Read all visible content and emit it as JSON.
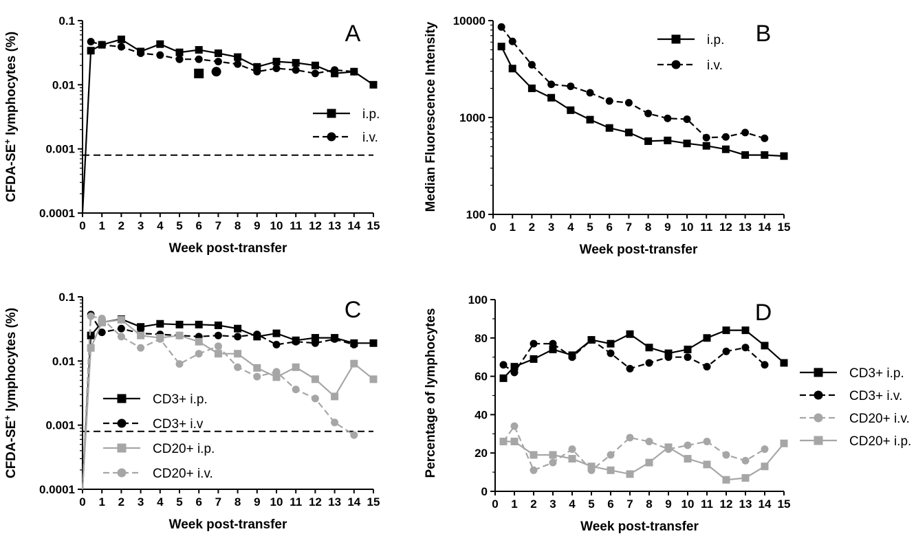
{
  "colors": {
    "black": "#000000",
    "gray": "#a6a6a6"
  },
  "chart_data": [
    {
      "panel": "A",
      "type": "line",
      "xlabel": "Week post-transfer",
      "ylabel_parts": [
        "CFDA-SE",
        "+",
        " lymphocytes (%)"
      ],
      "yscale": "log",
      "xlim": [
        0,
        15
      ],
      "ylim": [
        0.0001,
        0.1
      ],
      "xticks": [
        "0",
        "1",
        "2",
        "3",
        "4",
        "5",
        "6",
        "7",
        "8",
        "9",
        "10",
        "11",
        "12",
        "13",
        "14",
        "15"
      ],
      "yticks": [
        "0.0001",
        "0.001",
        "0.01",
        "0.1"
      ],
      "threshold": 0.0008,
      "legend_position": "right-middle",
      "series": [
        {
          "name": "i.p.",
          "marker": "square",
          "dashed": false,
          "color": "black",
          "x": [
            0,
            0.43,
            1,
            2,
            3,
            4,
            5,
            6,
            7,
            8,
            9,
            10,
            11,
            12,
            13,
            14,
            15
          ],
          "y": [
            0.0001,
            0.034,
            0.042,
            0.051,
            0.033,
            0.043,
            0.032,
            0.035,
            0.031,
            0.027,
            0.019,
            0.023,
            0.022,
            0.02,
            0.015,
            0.016,
            0.01
          ]
        },
        {
          "name": "i.v.",
          "marker": "circle",
          "dashed": true,
          "color": "black",
          "x": [
            0.43,
            1,
            2,
            3,
            4,
            5,
            6,
            7,
            8,
            9,
            10,
            11,
            12,
            13,
            14
          ],
          "y": [
            0.047,
            0.042,
            0.039,
            0.031,
            0.029,
            0.025,
            0.025,
            0.023,
            0.021,
            0.016,
            0.018,
            0.017,
            0.015,
            0.017,
            0.016
          ]
        }
      ],
      "extra_points": [
        {
          "x": 6,
          "y": 0.015,
          "marker": "square"
        },
        {
          "x": 6.9,
          "y": 0.016,
          "marker": "circle"
        }
      ]
    },
    {
      "panel": "B",
      "type": "line",
      "xlabel": "Week post-transfer",
      "ylabel": "Median Fluorescence Intensity",
      "yscale": "log",
      "xlim": [
        0,
        15
      ],
      "ylim": [
        100,
        10000
      ],
      "xticks": [
        "0",
        "1",
        "2",
        "3",
        "4",
        "5",
        "6",
        "7",
        "8",
        "9",
        "10",
        "11",
        "12",
        "13",
        "14",
        "15"
      ],
      "yticks": [
        "100",
        "1000",
        "10000"
      ],
      "legend_position": "top-middle",
      "series": [
        {
          "name": "i.p.",
          "marker": "square",
          "dashed": false,
          "color": "black",
          "x": [
            0.43,
            1,
            2,
            3,
            4,
            5,
            6,
            7,
            8,
            9,
            10,
            11,
            12,
            13,
            14,
            15
          ],
          "y": [
            5400,
            3200,
            2000,
            1600,
            1190,
            950,
            780,
            700,
            570,
            580,
            540,
            510,
            470,
            410,
            410,
            400
          ]
        },
        {
          "name": "i.v.",
          "marker": "circle",
          "dashed": true,
          "color": "black",
          "x": [
            0.43,
            1,
            2,
            3,
            4,
            5,
            6,
            7,
            8,
            9,
            10,
            11,
            12,
            13,
            14
          ],
          "y": [
            8600,
            6100,
            3500,
            2200,
            2100,
            1800,
            1480,
            1420,
            1100,
            980,
            960,
            620,
            630,
            700,
            610
          ]
        }
      ]
    },
    {
      "panel": "C",
      "type": "line",
      "xlabel": "Week post-transfer",
      "ylabel_parts": [
        "CFDA-SE",
        "+",
        " lymphocytes (%)"
      ],
      "yscale": "log",
      "xlim": [
        0,
        15
      ],
      "ylim": [
        0.0001,
        0.1
      ],
      "xticks": [
        "0",
        "1",
        "2",
        "3",
        "4",
        "5",
        "6",
        "7",
        "8",
        "9",
        "10",
        "11",
        "12",
        "13",
        "14",
        "15"
      ],
      "yticks": [
        "0.0001",
        "0.001",
        "0.01",
        "0.1"
      ],
      "threshold": 0.0008,
      "legend_position": "bottom-left",
      "series": [
        {
          "name": "CD3+ i.p.",
          "marker": "square",
          "dashed": false,
          "color": "black",
          "x": [
            0,
            0.43,
            1,
            2,
            3,
            4,
            5,
            6,
            7,
            8,
            9,
            10,
            11,
            12,
            13,
            14,
            15
          ],
          "y": [
            0.0001,
            0.025,
            0.04,
            0.045,
            0.034,
            0.038,
            0.037,
            0.037,
            0.036,
            0.032,
            0.024,
            0.027,
            0.021,
            0.023,
            0.023,
            0.019,
            0.019
          ]
        },
        {
          "name": "CD3+ i.v",
          "marker": "circle",
          "dashed": true,
          "color": "black",
          "x": [
            0,
            0.43,
            1,
            2,
            3,
            4,
            5,
            6,
            7,
            8,
            9,
            10,
            11,
            12,
            13,
            14
          ],
          "y": [
            0.0001,
            0.053,
            0.028,
            0.032,
            0.027,
            0.026,
            0.025,
            0.024,
            0.025,
            0.024,
            0.026,
            0.018,
            0.02,
            0.019,
            0.022,
            0.018
          ]
        },
        {
          "name": "CD20+ i.p.",
          "marker": "square",
          "dashed": false,
          "color": "gray",
          "x": [
            0,
            0.43,
            1,
            2,
            3,
            4,
            5,
            6,
            7,
            8,
            9,
            10,
            11,
            12,
            13,
            14,
            15
          ],
          "y": [
            0.0001,
            0.016,
            0.04,
            0.044,
            0.025,
            0.023,
            0.025,
            0.02,
            0.013,
            0.013,
            0.0078,
            0.0056,
            0.008,
            0.0052,
            0.0028,
            0.0091,
            0.0052
          ]
        },
        {
          "name": "CD20+ i.v.",
          "marker": "circle",
          "dashed": true,
          "color": "gray",
          "x": [
            0,
            0.43,
            1,
            2,
            3,
            4,
            5,
            6,
            7,
            8,
            9,
            10,
            11,
            12,
            13,
            14
          ],
          "y": [
            0.0001,
            0.05,
            0.046,
            0.024,
            0.016,
            0.022,
            0.009,
            0.013,
            0.017,
            0.008,
            0.0057,
            0.0068,
            0.0036,
            0.0026,
            0.0011,
            0.0007
          ]
        }
      ]
    },
    {
      "panel": "D",
      "type": "line",
      "xlabel": "Week post-transfer",
      "ylabel": "Percentage of lymphocytes",
      "yscale": "linear",
      "xlim": [
        0,
        15
      ],
      "ylim": [
        0,
        100
      ],
      "xticks": [
        "0",
        "1",
        "2",
        "3",
        "4",
        "5",
        "6",
        "7",
        "8",
        "9",
        "10",
        "11",
        "12",
        "13",
        "14",
        "15"
      ],
      "yticks": [
        "0",
        "20",
        "40",
        "60",
        "80",
        "100"
      ],
      "legend_position": "right",
      "series": [
        {
          "name": "CD3+ i.p.",
          "marker": "square",
          "dashed": false,
          "color": "black",
          "x": [
            0.43,
            1,
            2,
            3,
            4,
            5,
            6,
            7,
            8,
            9,
            10,
            11,
            12,
            13,
            14,
            15
          ],
          "y": [
            59,
            65,
            69,
            74,
            71,
            79,
            77,
            82,
            75,
            72,
            74,
            80,
            84,
            84,
            76,
            67
          ]
        },
        {
          "name": "CD3+ i.v.",
          "marker": "circle",
          "dashed": true,
          "color": "black",
          "x": [
            0.43,
            1,
            2,
            3,
            4,
            5,
            6,
            7,
            8,
            9,
            10,
            11,
            12,
            13,
            14
          ],
          "y": [
            66,
            62,
            77,
            77,
            70,
            79,
            72,
            64,
            67,
            70,
            70,
            65,
            73,
            75,
            66
          ]
        },
        {
          "name": "CD20+ i.v.",
          "marker": "circle",
          "dashed": true,
          "color": "gray",
          "x": [
            0.43,
            1,
            2,
            3,
            4,
            5,
            6,
            7,
            8,
            9,
            10,
            11,
            12,
            13,
            14
          ],
          "y": [
            26,
            34,
            11,
            15,
            22,
            11,
            19,
            28,
            26,
            22,
            24,
            26,
            19,
            16,
            22
          ]
        },
        {
          "name": "CD20+ i.p.",
          "marker": "square",
          "dashed": false,
          "color": "gray",
          "x": [
            0.43,
            1,
            2,
            3,
            4,
            5,
            6,
            7,
            8,
            9,
            10,
            11,
            12,
            13,
            14,
            15
          ],
          "y": [
            26,
            26,
            19,
            19,
            17,
            13,
            11,
            9,
            15,
            23,
            17,
            14,
            6,
            7,
            13,
            25
          ]
        }
      ]
    }
  ]
}
